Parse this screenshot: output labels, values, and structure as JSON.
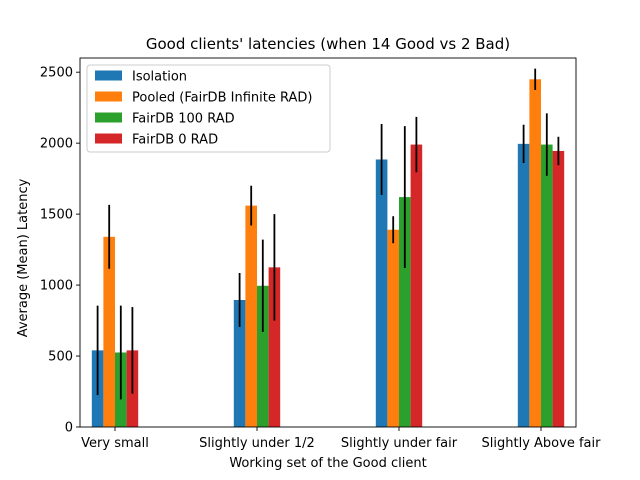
{
  "chart_data": {
    "type": "bar",
    "title": "Good clients' latencies (when 14 Good vs 2 Bad)",
    "xlabel": "Working set of the Good client",
    "ylabel": "Average (Mean) Latency",
    "categories": [
      "Very small",
      "Slightly under 1/2",
      "Slightly under fair",
      "Slightly Above fair"
    ],
    "ylim": [
      0,
      2600
    ],
    "yticks": [
      0,
      500,
      1000,
      1500,
      2000,
      2500
    ],
    "legend_position": "upper-left",
    "grid": false,
    "series": [
      {
        "name": "Isolation",
        "color": "#1f77b4",
        "values": [
          540,
          895,
          1885,
          1995
        ],
        "errors": [
          315,
          190,
          250,
          135
        ]
      },
      {
        "name": "Pooled (FairDB Infinite RAD)",
        "color": "#ff7f0e",
        "values": [
          1340,
          1560,
          1390,
          2450
        ],
        "errors": [
          225,
          140,
          95,
          75
        ]
      },
      {
        "name": "FairDB 100 RAD",
        "color": "#2ca02c",
        "values": [
          525,
          995,
          1620,
          1990
        ],
        "errors": [
          330,
          325,
          500,
          220
        ]
      },
      {
        "name": "FairDB 0 RAD",
        "color": "#d62728",
        "values": [
          540,
          1125,
          1990,
          1945
        ],
        "errors": [
          305,
          375,
          195,
          100
        ]
      }
    ]
  }
}
